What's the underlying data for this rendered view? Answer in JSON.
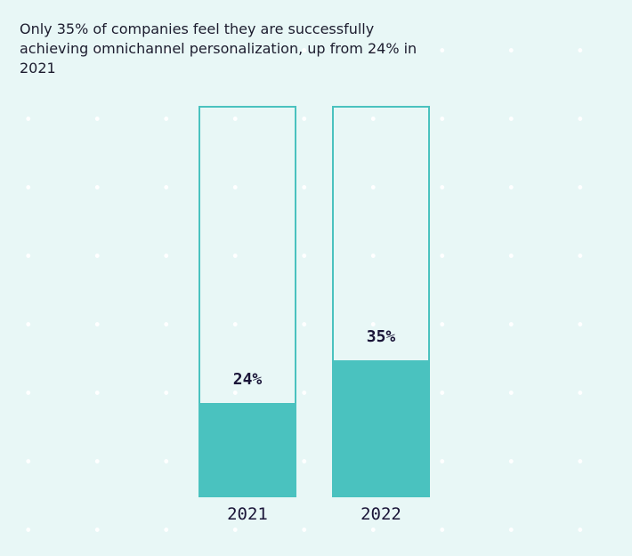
{
  "chart_data": {
    "type": "bar",
    "title": "Only 35% of companies feel they are successfully achieving omnichannel personalization, up from 24% in 2021",
    "categories": [
      "2021",
      "2022"
    ],
    "values": [
      24,
      35
    ],
    "value_labels": [
      "24%",
      "35%"
    ],
    "ylim": [
      0,
      100
    ],
    "xlabel": "",
    "ylabel": "",
    "grid": false,
    "colors": {
      "fill": "#4ac2bf",
      "outline": "#4ac2bf",
      "text": "#1a1538",
      "background": "#e8f7f6"
    }
  }
}
